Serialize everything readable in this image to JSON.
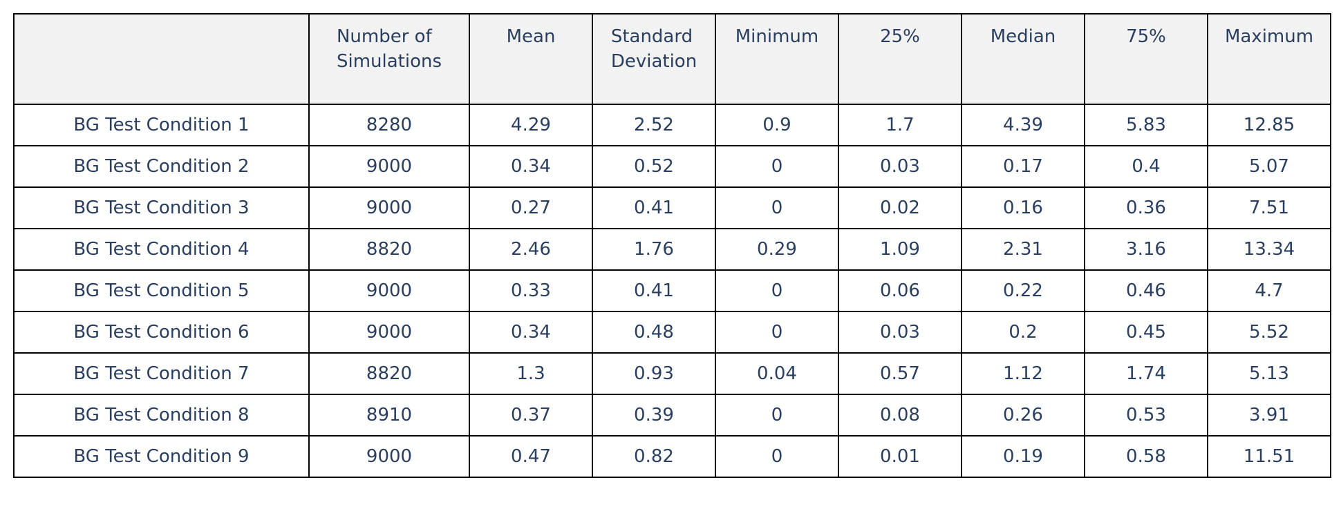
{
  "chart_data": {
    "type": "table",
    "columns": [
      "",
      "Number of Simulations",
      "Mean",
      "Standard Deviation",
      "Minimum",
      "25%",
      "Median",
      "75%",
      "Maximum"
    ],
    "header_lines": [
      [
        ""
      ],
      [
        "Number of",
        "Simulations"
      ],
      [
        "Mean"
      ],
      [
        "Standard",
        "Deviation"
      ],
      [
        "Minimum"
      ],
      [
        "25%"
      ],
      [
        "Median"
      ],
      [
        "75%"
      ],
      [
        "Maximum"
      ]
    ],
    "rows": [
      [
        "BG Test Condition 1",
        "8280",
        "4.29",
        "2.52",
        "0.9",
        "1.7",
        "4.39",
        "5.83",
        "12.85"
      ],
      [
        "BG Test Condition 2",
        "9000",
        "0.34",
        "0.52",
        "0",
        "0.03",
        "0.17",
        "0.4",
        "5.07"
      ],
      [
        "BG Test Condition 3",
        "9000",
        "0.27",
        "0.41",
        "0",
        "0.02",
        "0.16",
        "0.36",
        "7.51"
      ],
      [
        "BG Test Condition 4",
        "8820",
        "2.46",
        "1.76",
        "0.29",
        "1.09",
        "2.31",
        "3.16",
        "13.34"
      ],
      [
        "BG Test Condition 5",
        "9000",
        "0.33",
        "0.41",
        "0",
        "0.06",
        "0.22",
        "0.46",
        "4.7"
      ],
      [
        "BG Test Condition 6",
        "9000",
        "0.34",
        "0.48",
        "0",
        "0.03",
        "0.2",
        "0.45",
        "5.52"
      ],
      [
        "BG Test Condition 7",
        "8820",
        "1.3",
        "0.93",
        "0.04",
        "0.57",
        "1.12",
        "1.74",
        "5.13"
      ],
      [
        "BG Test Condition 8",
        "8910",
        "0.37",
        "0.39",
        "0",
        "0.08",
        "0.26",
        "0.53",
        "3.91"
      ],
      [
        "BG Test Condition 9",
        "9000",
        "0.47",
        "0.82",
        "0",
        "0.01",
        "0.19",
        "0.58",
        "11.51"
      ]
    ]
  },
  "colors": {
    "text": "#2a3f5f",
    "header_background": "#f2f2f2",
    "border": "#000000"
  }
}
